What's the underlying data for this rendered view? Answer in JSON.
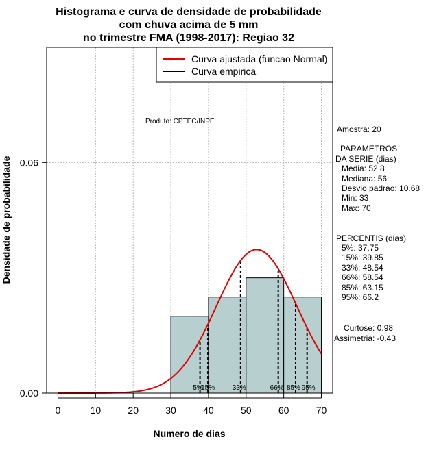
{
  "chart_data": {
    "type": "bar",
    "title_lines": [
      "Histograma e curva de densidade de probabilidade",
      "com chuva acima de 5 mm",
      "no trimestre FMA (1998-2017): Regiao 32"
    ],
    "xlabel": "Numero de dias",
    "ylabel": "Densidade de probabilidade",
    "xlim": [
      -3,
      73
    ],
    "ylim": [
      0,
      0.09
    ],
    "xticks": [
      0,
      10,
      20,
      30,
      40,
      50,
      60,
      70
    ],
    "yticks": [
      0.0,
      0.06
    ],
    "ytick_labels": [
      "0.00",
      "0.06"
    ],
    "grid": true,
    "hline": 0.05,
    "bins": [
      {
        "x0": 30,
        "x1": 40,
        "density": 0.02
      },
      {
        "x0": 40,
        "x1": 50,
        "density": 0.025
      },
      {
        "x0": 50,
        "x1": 60,
        "density": 0.03
      },
      {
        "x0": 60,
        "x1": 70,
        "density": 0.025
      }
    ],
    "bar_color": "#b8cfcf",
    "normal_curve": {
      "mean": 52.8,
      "sd": 10.68,
      "range": [
        0,
        70
      ],
      "color": "#e00000"
    },
    "percentiles": [
      {
        "label": "5%",
        "value": 37.75
      },
      {
        "label": "15%",
        "value": 39.85
      },
      {
        "label": "33%",
        "value": 48.54
      },
      {
        "label": "66%",
        "value": 58.54
      },
      {
        "label": "85%",
        "value": 63.15
      },
      {
        "label": "95%",
        "value": 66.2
      }
    ],
    "legend": {
      "position": "top-right",
      "entries": [
        {
          "label": "Curva ajustada (funcao Normal)",
          "color": "#e00000"
        },
        {
          "label": "Curva empirica",
          "color": "#000000"
        }
      ]
    },
    "product_label": "Produto: CPTEC/INPE"
  },
  "side_panel": {
    "amostra": "Amostra: 20",
    "params_title_1": "PARAMETROS",
    "params_title_2": "DA SERIE (dias)",
    "media": "Media: 52.8",
    "mediana": "Mediana: 56",
    "desvio": "Desvio padrao: 10.68",
    "min": "Min: 33",
    "max": "Max: 70",
    "percentis_title": "PERCENTIS (dias)",
    "p5": "5%: 37.75",
    "p15": "15%: 39.85",
    "p33": "33%: 48.54",
    "p66": "66%: 58.54",
    "p85": "85%: 63.15",
    "p95": "95%: 66.2",
    "curtose": "Curtose: 0.98",
    "assimetria": "Assimetria: -0.43"
  }
}
